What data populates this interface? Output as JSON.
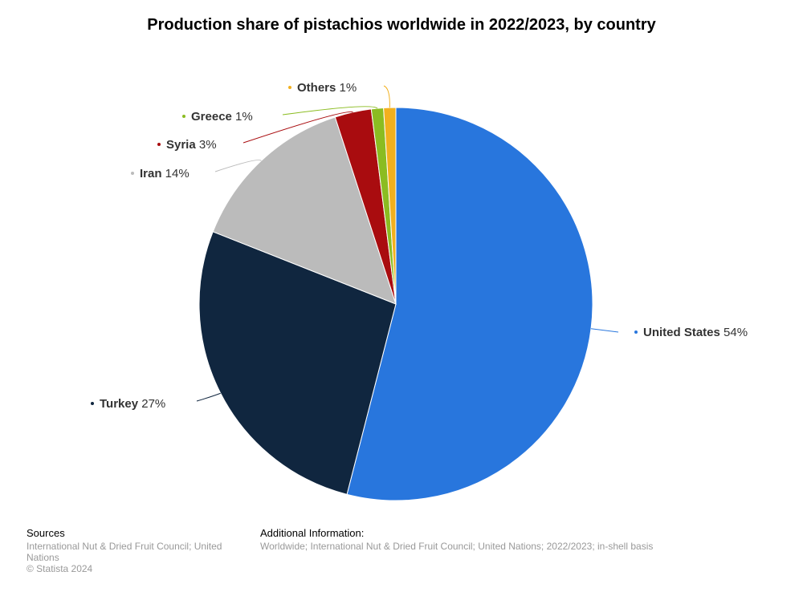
{
  "chart_data": {
    "type": "pie",
    "title": "Production share of pistachios worldwide in 2022/2023, by country",
    "slices": [
      {
        "label": "United States",
        "value": 54,
        "display": "54%",
        "color": "#2876dd"
      },
      {
        "label": "Turkey",
        "value": 27,
        "display": "27%",
        "color": "#10263f"
      },
      {
        "label": "Iran",
        "value": 14,
        "display": "14%",
        "color": "#bbbbbb"
      },
      {
        "label": "Syria",
        "value": 3,
        "display": "3%",
        "color": "#a90c0f"
      },
      {
        "label": "Greece",
        "value": 1,
        "display": "1%",
        "color": "#8bbc21"
      },
      {
        "label": "Others",
        "value": 1,
        "display": "1%",
        "color": "#f2b01e"
      }
    ]
  },
  "footer": {
    "sources_heading": "Sources",
    "sources_text": "International Nut & Dried Fruit Council; United Nations",
    "copyright": "© Statista 2024",
    "additional_heading": "Additional Information:",
    "additional_text": "Worldwide; International Nut & Dried Fruit Council; United Nations; 2022/2023; in-shell basis"
  }
}
